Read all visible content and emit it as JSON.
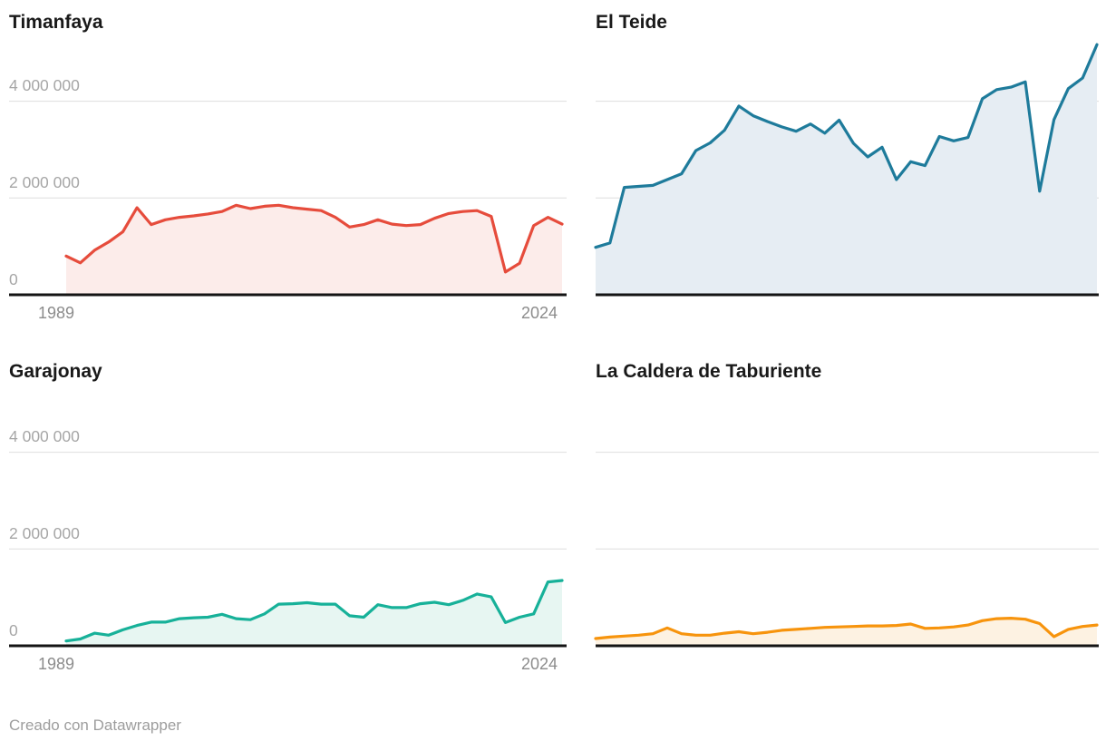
{
  "page": {
    "background": "#ffffff",
    "footer": "Creado con Datawrapper"
  },
  "axis": {
    "x_first": "1989",
    "x_last": "2024",
    "y_ticks": [
      "4 000 000",
      "2 000 000",
      "0"
    ],
    "grid_color": "#dedede",
    "baseline_color": "#141414"
  },
  "chart_data": [
    {
      "type": "area",
      "title": "Timanfaya",
      "years_from": 1989,
      "years_to": 2024,
      "ylim": [
        0,
        5300000
      ],
      "gridlines": [
        2000000,
        4000000
      ],
      "grid": true,
      "legend": "none",
      "show_y_tick_labels": true,
      "show_x_tick_labels": true,
      "line_color": "#e64c3c",
      "fill_color": "#fcecea",
      "values": [
        800000,
        660000,
        920000,
        1090000,
        1300000,
        1800000,
        1450000,
        1550000,
        1600000,
        1630000,
        1670000,
        1720000,
        1850000,
        1780000,
        1830000,
        1850000,
        1800000,
        1770000,
        1740000,
        1600000,
        1400000,
        1450000,
        1550000,
        1460000,
        1430000,
        1450000,
        1580000,
        1680000,
        1720000,
        1740000,
        1620000,
        470000,
        650000,
        1430000,
        1600000,
        1460000
      ]
    },
    {
      "type": "area",
      "title": "El Teide",
      "years_from": 1989,
      "years_to": 2024,
      "ylim": [
        0,
        5300000
      ],
      "gridlines": [
        2000000,
        4000000
      ],
      "grid": true,
      "legend": "none",
      "show_y_tick_labels": false,
      "show_x_tick_labels": false,
      "line_color": "#1e7b9b",
      "fill_color": "#e6edf3",
      "values": [
        980000,
        1070000,
        2220000,
        2240000,
        2260000,
        2380000,
        2500000,
        2980000,
        3140000,
        3400000,
        3900000,
        3700000,
        3580000,
        3470000,
        3380000,
        3530000,
        3340000,
        3610000,
        3130000,
        2850000,
        3050000,
        2380000,
        2750000,
        2670000,
        3270000,
        3180000,
        3250000,
        4050000,
        4240000,
        4290000,
        4400000,
        2140000,
        3620000,
        4260000,
        4480000,
        5170000
      ]
    },
    {
      "type": "area",
      "title": "Garajonay",
      "years_from": 1989,
      "years_to": 2024,
      "ylim": [
        0,
        5300000
      ],
      "gridlines": [
        2000000,
        4000000
      ],
      "grid": true,
      "legend": "none",
      "show_y_tick_labels": true,
      "show_x_tick_labels": true,
      "line_color": "#17b199",
      "fill_color": "#e7f6f2",
      "values": [
        100000,
        140000,
        260000,
        220000,
        330000,
        420000,
        490000,
        490000,
        560000,
        580000,
        590000,
        650000,
        560000,
        540000,
        660000,
        860000,
        870000,
        890000,
        860000,
        860000,
        620000,
        590000,
        850000,
        790000,
        790000,
        870000,
        900000,
        850000,
        940000,
        1070000,
        1010000,
        480000,
        590000,
        660000,
        1320000,
        1350000
      ]
    },
    {
      "type": "area",
      "title": "La Caldera de Taburiente",
      "years_from": 1989,
      "years_to": 2024,
      "ylim": [
        0,
        5300000
      ],
      "gridlines": [
        2000000,
        4000000
      ],
      "grid": true,
      "legend": "none",
      "show_y_tick_labels": false,
      "show_x_tick_labels": false,
      "line_color": "#f7940d",
      "fill_color": "#fdf2e2",
      "values": [
        150000,
        180000,
        200000,
        220000,
        250000,
        370000,
        250000,
        220000,
        220000,
        260000,
        290000,
        250000,
        280000,
        320000,
        340000,
        360000,
        380000,
        390000,
        400000,
        410000,
        410000,
        420000,
        450000,
        360000,
        370000,
        390000,
        430000,
        520000,
        560000,
        570000,
        550000,
        460000,
        190000,
        340000,
        400000,
        430000
      ]
    }
  ]
}
